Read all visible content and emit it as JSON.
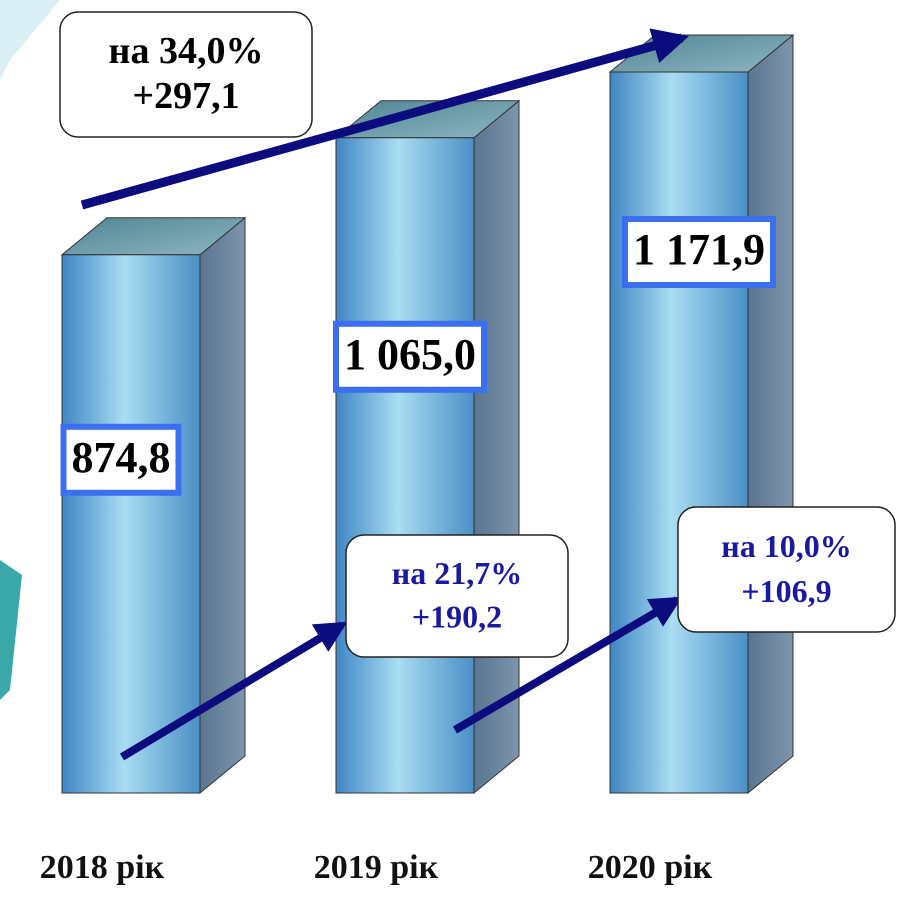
{
  "chart_data": {
    "type": "bar",
    "categories": [
      "2018 рік",
      "2019 рік",
      "2020 рік"
    ],
    "values": [
      874.8,
      1065.0,
      1171.9
    ],
    "value_labels": [
      "874,8",
      "1 065,0",
      "1 171,9"
    ],
    "annotations": [
      {
        "lines": [
          "на 34,0%",
          "+297,1"
        ]
      },
      {
        "lines": [
          "на 21,7%",
          "+190,2"
        ]
      },
      {
        "lines": [
          "на 10,0%",
          "+106,9"
        ]
      }
    ]
  }
}
